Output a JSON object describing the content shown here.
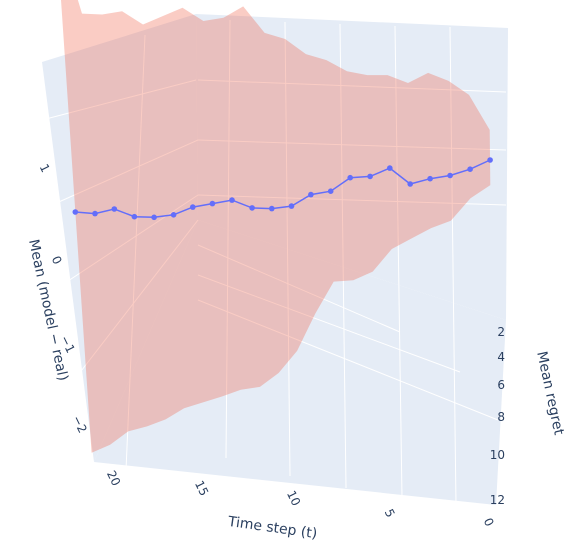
{
  "chart_data": {
    "type": "line",
    "render": "3d",
    "xlabel": "Time step (t)",
    "ylabel": "Mean regret",
    "zlabel": "Mean (model − real)",
    "x_ticks": [
      0,
      5,
      10,
      15,
      20
    ],
    "y_ticks": [
      2,
      4,
      6,
      8,
      10,
      12
    ],
    "z_ticks": [
      1,
      0,
      -1,
      -2
    ],
    "x_tick_labels": [
      "0",
      "5",
      "10",
      "15",
      "20"
    ],
    "y_tick_labels": [
      "2",
      "4",
      "6",
      "8",
      "10",
      "12"
    ],
    "z_tick_labels": [
      "1",
      "0",
      "−1",
      "−2"
    ],
    "series": [
      {
        "kind": "line+markers",
        "color": "#636efa",
        "x": [
          0,
          1,
          2,
          3,
          4,
          5,
          6,
          7,
          8,
          9,
          10,
          11,
          12,
          13,
          14,
          15,
          16,
          17,
          18,
          19,
          20,
          21
        ],
        "z": [
          1.25,
          1.12,
          1.02,
          0.95,
          0.86,
          0.98,
          0.86,
          0.81,
          0.64,
          0.57,
          0.42,
          0.36,
          0.33,
          0.37,
          0.3,
          0.23,
          0.12,
          0.06,
          0.03,
          0.07,
          -0.01,
          -0.03
        ]
      },
      {
        "kind": "band",
        "color": "#ef553b",
        "opacity": 0.3,
        "x": [
          0,
          1,
          2,
          3,
          4,
          5,
          6,
          7,
          8,
          9,
          10,
          11,
          12,
          13,
          14,
          15,
          16,
          17,
          18,
          19,
          20,
          21
        ],
        "upper": [
          1.55,
          1.86,
          1.96,
          2.0,
          1.86,
          1.9,
          1.86,
          1.86,
          1.93,
          1.95,
          2.06,
          2.08,
          2.3,
          2.15,
          2.08,
          2.17,
          2.05,
          1.93,
          2.02,
          1.95,
          1.92,
          2.7
        ],
        "lower": [
          1.0,
          0.83,
          0.57,
          0.46,
          0.32,
          0.18,
          -0.08,
          -0.2,
          -0.25,
          -0.6,
          -1.0,
          -1.25,
          -1.42,
          -1.48,
          -1.58,
          -1.67,
          -1.76,
          -1.9,
          -2.0,
          -2.08,
          -2.24,
          -2.35
        ]
      }
    ]
  }
}
